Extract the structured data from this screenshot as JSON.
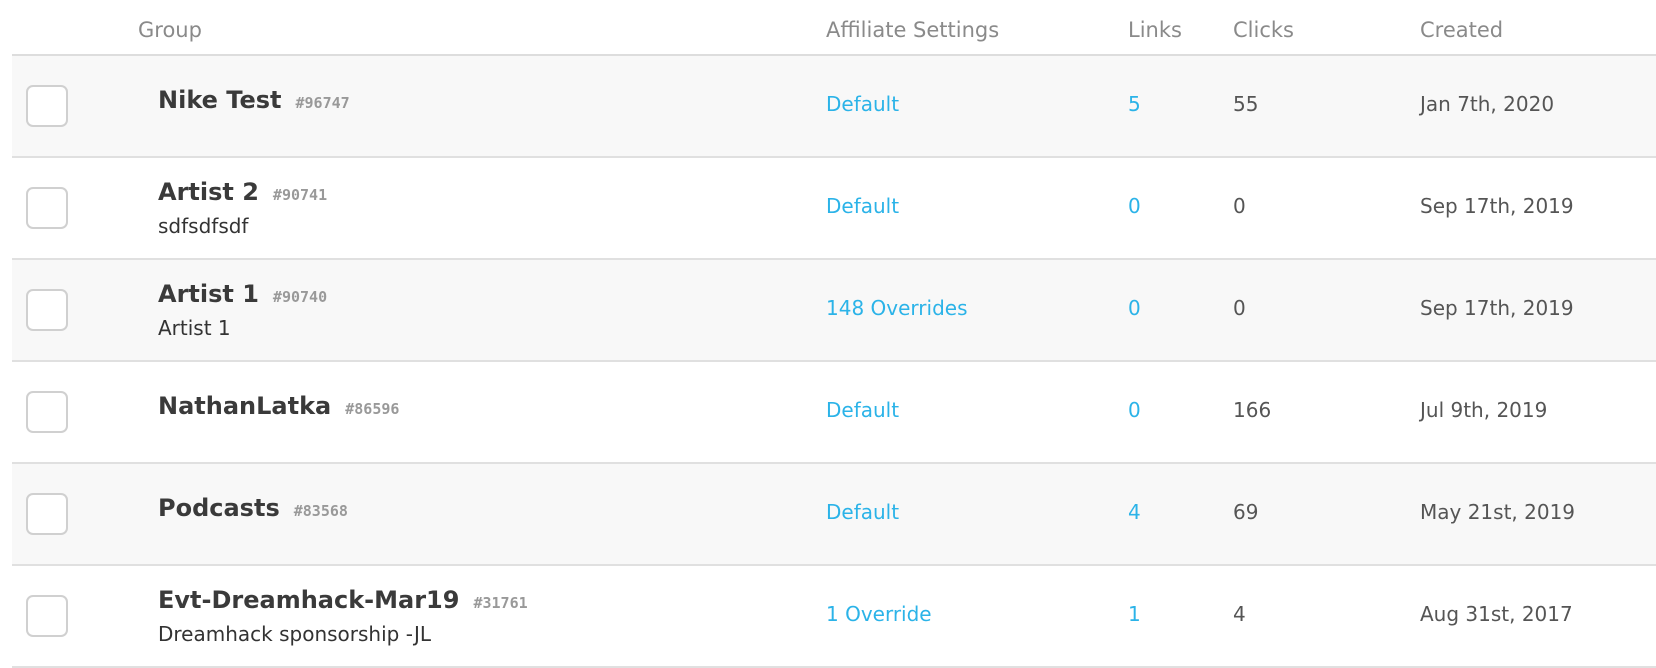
{
  "headers": {
    "group": "Group",
    "affiliate": "Affiliate Settings",
    "links": "Links",
    "clicks": "Clicks",
    "created": "Created"
  },
  "rows": [
    {
      "name": "Nike Test",
      "id": "#96747",
      "description": "",
      "affiliate": "Default",
      "links": "5",
      "clicks": "55",
      "created": "Jan 7th, 2020"
    },
    {
      "name": "Artist 2",
      "id": "#90741",
      "description": "sdfsdfsdf",
      "affiliate": "Default",
      "links": "0",
      "clicks": "0",
      "created": "Sep 17th, 2019"
    },
    {
      "name": "Artist 1",
      "id": "#90740",
      "description": "Artist 1",
      "affiliate": "148 Overrides",
      "links": "0",
      "clicks": "0",
      "created": "Sep 17th, 2019"
    },
    {
      "name": "NathanLatka",
      "id": "#86596",
      "description": "",
      "affiliate": "Default",
      "links": "0",
      "clicks": "166",
      "created": "Jul 9th, 2019"
    },
    {
      "name": "Podcasts",
      "id": "#83568",
      "description": "",
      "affiliate": "Default",
      "links": "4",
      "clicks": "69",
      "created": "May 21st, 2019"
    },
    {
      "name": "Evt-Dreamhack-Mar19",
      "id": "#31761",
      "description": "Dreamhack sponsorship -JL",
      "affiliate": "1 Override",
      "links": "1",
      "clicks": "4",
      "created": "Aug 31st, 2017"
    }
  ],
  "colors": {
    "link": "#2bb3e8",
    "alt_row": "#f8f8f8"
  }
}
